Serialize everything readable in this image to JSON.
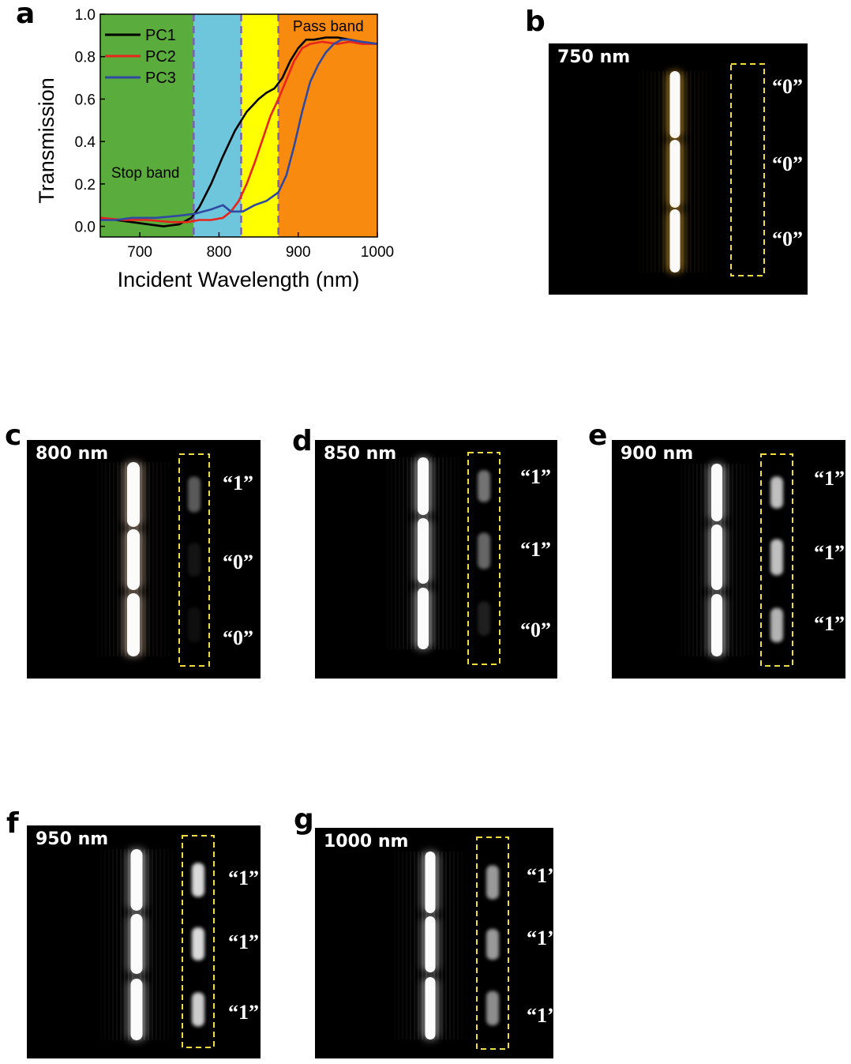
{
  "panel_letters": {
    "a": "a",
    "b": "b",
    "c": "c",
    "d": "d",
    "e": "e",
    "f": "f",
    "g": "g"
  },
  "chart_data": {
    "type": "line",
    "xlabel": "Incident Wavelength (nm)",
    "ylabel": "Transmission",
    "xlim": [
      650,
      1000
    ],
    "ylim": [
      -0.05,
      1.0
    ],
    "xticks": [
      700,
      800,
      900,
      1000
    ],
    "yticks": [
      0.0,
      0.2,
      0.4,
      0.6,
      0.8,
      1.0
    ],
    "ytick_labels": [
      "0.0",
      "0.2",
      "0.4",
      "0.6",
      "0.8",
      "1.0"
    ],
    "grid": false,
    "legend_position": "top-left",
    "annotations": [
      {
        "text": "Stop band",
        "x": 707,
        "y": 0.23
      },
      {
        "text": "Pass band",
        "x": 938,
        "y": 0.92
      }
    ],
    "bands": [
      {
        "from": 650,
        "to": 768,
        "color": "#5aac3c"
      },
      {
        "from": 768,
        "to": 828,
        "color": "#6ec6dc"
      },
      {
        "from": 828,
        "to": 875,
        "color": "#ffff00"
      },
      {
        "from": 875,
        "to": 1000,
        "color": "#f88a10"
      }
    ],
    "band_dividers": [
      768,
      828,
      875
    ],
    "series": [
      {
        "name": "PC1",
        "color": "#000000",
        "x": [
          650,
          670,
          690,
          710,
          730,
          750,
          765,
          775,
          790,
          805,
          820,
          835,
          850,
          860,
          870,
          880,
          890,
          900,
          910,
          920,
          935,
          950,
          965,
          980,
          1000
        ],
        "y": [
          0.04,
          0.03,
          0.02,
          0.01,
          0.0,
          0.01,
          0.04,
          0.09,
          0.2,
          0.33,
          0.45,
          0.54,
          0.6,
          0.63,
          0.65,
          0.7,
          0.78,
          0.84,
          0.88,
          0.88,
          0.89,
          0.89,
          0.88,
          0.87,
          0.86
        ]
      },
      {
        "name": "PC2",
        "color": "#e8241c",
        "x": [
          650,
          680,
          710,
          740,
          760,
          775,
          790,
          805,
          815,
          825,
          835,
          845,
          855,
          865,
          875,
          885,
          895,
          905,
          915,
          930,
          950,
          965,
          980,
          1000
        ],
        "y": [
          0.04,
          0.03,
          0.03,
          0.02,
          0.02,
          0.03,
          0.03,
          0.04,
          0.07,
          0.12,
          0.2,
          0.3,
          0.41,
          0.52,
          0.6,
          0.69,
          0.78,
          0.84,
          0.86,
          0.87,
          0.86,
          0.87,
          0.86,
          0.86
        ]
      },
      {
        "name": "PC3",
        "color": "#2f4aa0",
        "x": [
          650,
          670,
          690,
          720,
          750,
          770,
          790,
          805,
          815,
          830,
          845,
          860,
          875,
          885,
          895,
          905,
          915,
          925,
          935,
          945,
          955,
          965,
          980,
          1000
        ],
        "y": [
          0.03,
          0.03,
          0.04,
          0.04,
          0.05,
          0.06,
          0.08,
          0.1,
          0.07,
          0.07,
          0.1,
          0.12,
          0.16,
          0.24,
          0.38,
          0.54,
          0.68,
          0.76,
          0.82,
          0.86,
          0.88,
          0.88,
          0.87,
          0.86
        ]
      }
    ]
  },
  "images": [
    {
      "id": "b",
      "wavelength": "750 nm",
      "tint": "#ffbe3c",
      "bits": [
        "“0”",
        "“0”",
        "“0”"
      ],
      "bit_strength": [
        0.0,
        0.0,
        0.0
      ]
    },
    {
      "id": "c",
      "wavelength": "800 nm",
      "tint": "#ffe0c8",
      "bits": [
        "“1”",
        "“0”",
        "“0”"
      ],
      "bit_strength": [
        0.35,
        0.08,
        0.06
      ]
    },
    {
      "id": "d",
      "wavelength": "850 nm",
      "tint": "#f2f2f2",
      "bits": [
        "“1”",
        "“1”",
        "“0”"
      ],
      "bit_strength": [
        0.45,
        0.4,
        0.12
      ]
    },
    {
      "id": "e",
      "wavelength": "900 nm",
      "tint": "#f2f2f2",
      "bits": [
        "“1”",
        "“1”",
        "“1”"
      ],
      "bit_strength": [
        0.75,
        0.75,
        0.7
      ]
    },
    {
      "id": "f",
      "wavelength": "950 nm",
      "tint": "#f2f2f2",
      "bits": [
        "“1”",
        "“1”",
        "“1”"
      ],
      "bit_strength": [
        0.85,
        0.85,
        0.8
      ]
    },
    {
      "id": "g",
      "wavelength": "1000 nm",
      "tint": "#f2f2f2",
      "bits": [
        "“1’",
        "“1’",
        "“1’"
      ],
      "bit_strength": [
        0.6,
        0.6,
        0.55
      ]
    }
  ]
}
